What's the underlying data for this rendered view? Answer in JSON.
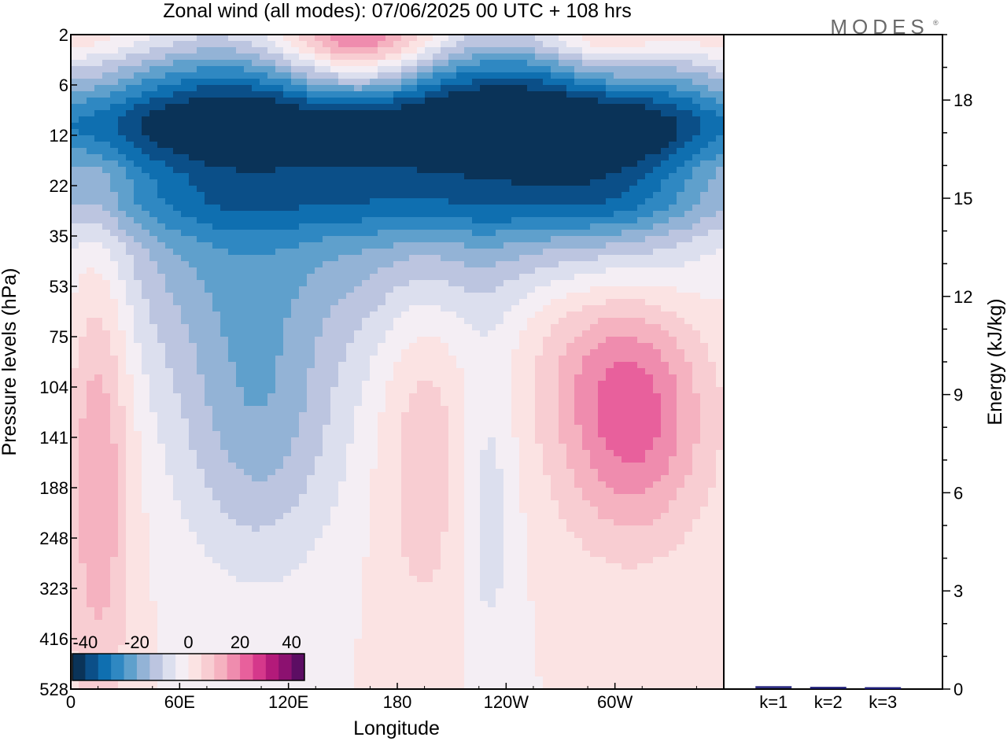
{
  "title": "Zonal wind (all modes):  07/06/2025  00 UTC  + 108 hrs",
  "logo": "MODES",
  "chart_data": [
    {
      "type": "heatmap",
      "xlabel": "Longitude",
      "ylabel": "Pressure levels (hPa)",
      "x_ticks": [
        "0",
        "60E",
        "120E",
        "180",
        "120W",
        "60W"
      ],
      "y_ticks": [
        "2",
        "6",
        "12",
        "22",
        "35",
        "53",
        "75",
        "104",
        "141",
        "188",
        "248",
        "323",
        "416",
        "528"
      ],
      "colorbar": {
        "labels": [
          "-40",
          "-20",
          "0",
          "20",
          "40"
        ],
        "range": [
          -45,
          45
        ],
        "colors": [
          "#0a3358",
          "#0b4f88",
          "#0f6fb0",
          "#2f88c2",
          "#5fa0cc",
          "#93b3d6",
          "#bcc5e0",
          "#dcdfee",
          "#f4eef4",
          "#fbe3e3",
          "#f8cdd2",
          "#f5b2c0",
          "#ef8cae",
          "#e8609c",
          "#d5388b",
          "#b31a7a",
          "#8c1170",
          "#5c0d63"
        ]
      },
      "x_range": [
        0,
        360
      ],
      "blobs": [
        {
          "lon": 180,
          "p": 11,
          "w": 95,
          "h": 3.5,
          "value": -30
        },
        {
          "lon": 290,
          "p": 12,
          "w": 60,
          "h": 3,
          "value": -28
        },
        {
          "lon": 60,
          "p": 14,
          "w": 70,
          "h": 4,
          "value": -18
        },
        {
          "lon": 160,
          "p": 2.3,
          "w": 45,
          "h": 1.3,
          "value": 32
        },
        {
          "lon": 295,
          "p": 2.5,
          "w": 35,
          "h": 1.4,
          "value": 18
        },
        {
          "lon": 105,
          "p": 125,
          "w": 45,
          "h": 3,
          "value": -16
        },
        {
          "lon": 310,
          "p": 120,
          "w": 40,
          "h": 2.5,
          "value": 24
        },
        {
          "lon": 15,
          "p": 160,
          "w": 18,
          "h": 5,
          "value": 15
        },
        {
          "lon": 195,
          "p": 130,
          "w": 25,
          "h": 4,
          "value": 10
        },
        {
          "lon": 270,
          "p": 65,
          "w": 45,
          "h": 2,
          "value": 8
        },
        {
          "lon": 230,
          "p": 220,
          "w": 15,
          "h": 3,
          "value": -8
        }
      ]
    },
    {
      "type": "bar",
      "categories": [
        "k=1",
        "k=2",
        "k=3"
      ],
      "values": [
        0.04,
        0.02,
        0.01
      ],
      "ylabel": "Energy (kJ/kg)",
      "ylim": [
        0,
        20
      ],
      "y_ticks": [
        0,
        3,
        6,
        9,
        12,
        15,
        18
      ],
      "bar_color": "#1f1f7a"
    }
  ]
}
